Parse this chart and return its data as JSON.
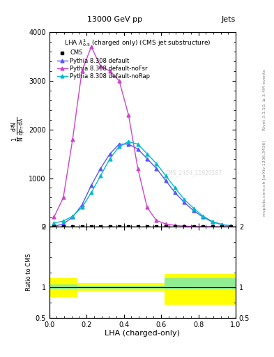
{
  "title": "13000 GeV pp",
  "title_right": "Jets",
  "panel_title": "LHA $\\lambda^{1}_{0.5}$ (charged only) (CMS jet substructure)",
  "xlabel": "LHA (charged-only)",
  "watermark": "CMS_2404_11920187",
  "rivet_right_1": "Rivet 3.1.10, ≥ 3.4M events",
  "rivet_right_2": "mcplots.cern.ch [arXiv:1306.3436]",
  "cms_x": [
    0.025,
    0.075,
    0.125,
    0.175,
    0.225,
    0.275,
    0.325,
    0.375,
    0.425,
    0.475,
    0.525,
    0.575,
    0.625,
    0.675,
    0.725,
    0.775,
    0.825,
    0.875,
    0.925,
    0.975
  ],
  "cms_y": [
    0,
    0,
    0,
    0,
    0,
    0,
    0,
    0,
    0,
    0,
    0,
    0,
    0,
    0,
    0,
    0,
    0,
    0,
    0,
    0
  ],
  "pythia_default_x": [
    0.025,
    0.075,
    0.125,
    0.175,
    0.225,
    0.275,
    0.325,
    0.375,
    0.425,
    0.475,
    0.525,
    0.575,
    0.625,
    0.675,
    0.725,
    0.775,
    0.825,
    0.875,
    0.925,
    0.975
  ],
  "pythia_default_y": [
    10,
    60,
    200,
    450,
    850,
    1200,
    1500,
    1700,
    1700,
    1600,
    1400,
    1200,
    950,
    700,
    500,
    330,
    200,
    100,
    50,
    15
  ],
  "pythia_default_color": "#5555ff",
  "pythia_noFsr_x": [
    0.025,
    0.075,
    0.125,
    0.175,
    0.225,
    0.275,
    0.325,
    0.375,
    0.425,
    0.475,
    0.525,
    0.575,
    0.625,
    0.675,
    0.725,
    0.775,
    0.825,
    0.875,
    0.925,
    0.975
  ],
  "pythia_noFsr_y": [
    200,
    600,
    1800,
    3200,
    3700,
    3300,
    3200,
    3000,
    2300,
    1200,
    400,
    130,
    60,
    30,
    15,
    8,
    4,
    2,
    1,
    0
  ],
  "pythia_noFsr_color": "#cc44cc",
  "pythia_noRap_x": [
    0.025,
    0.075,
    0.125,
    0.175,
    0.225,
    0.275,
    0.325,
    0.375,
    0.425,
    0.475,
    0.525,
    0.575,
    0.625,
    0.675,
    0.725,
    0.775,
    0.825,
    0.875,
    0.925,
    0.975
  ],
  "pythia_noRap_y": [
    80,
    120,
    220,
    400,
    700,
    1050,
    1400,
    1650,
    1750,
    1700,
    1500,
    1300,
    1050,
    800,
    560,
    380,
    220,
    110,
    50,
    15
  ],
  "pythia_noRap_color": "#00bbcc",
  "ylim_main": [
    0,
    4000
  ],
  "yticks_main": [
    0,
    1000,
    2000,
    3000,
    4000
  ],
  "ytick_labels_main": [
    "0",
    "1000",
    "2000",
    "3000",
    "4000"
  ],
  "ratio_ylim": [
    0.5,
    2.0
  ],
  "ratio_yticks": [
    0.5,
    1.0,
    2.0
  ],
  "green_band_segments": [
    {
      "x": [
        0.0,
        0.15
      ],
      "ylo": 0.97,
      "yhi": 1.05
    },
    {
      "x": [
        0.15,
        0.62
      ],
      "ylo": 0.98,
      "yhi": 1.02
    },
    {
      "x": [
        0.62,
        1.0
      ],
      "ylo": 0.97,
      "yhi": 1.15
    }
  ],
  "yellow_band_segments": [
    {
      "x": [
        0.0,
        0.15
      ],
      "ylo": 0.84,
      "yhi": 1.15
    },
    {
      "x": [
        0.15,
        0.62
      ],
      "ylo": 0.95,
      "yhi": 1.07
    },
    {
      "x": [
        0.62,
        1.0
      ],
      "ylo": 0.72,
      "yhi": 1.22
    }
  ],
  "xlim": [
    0.0,
    1.0
  ]
}
